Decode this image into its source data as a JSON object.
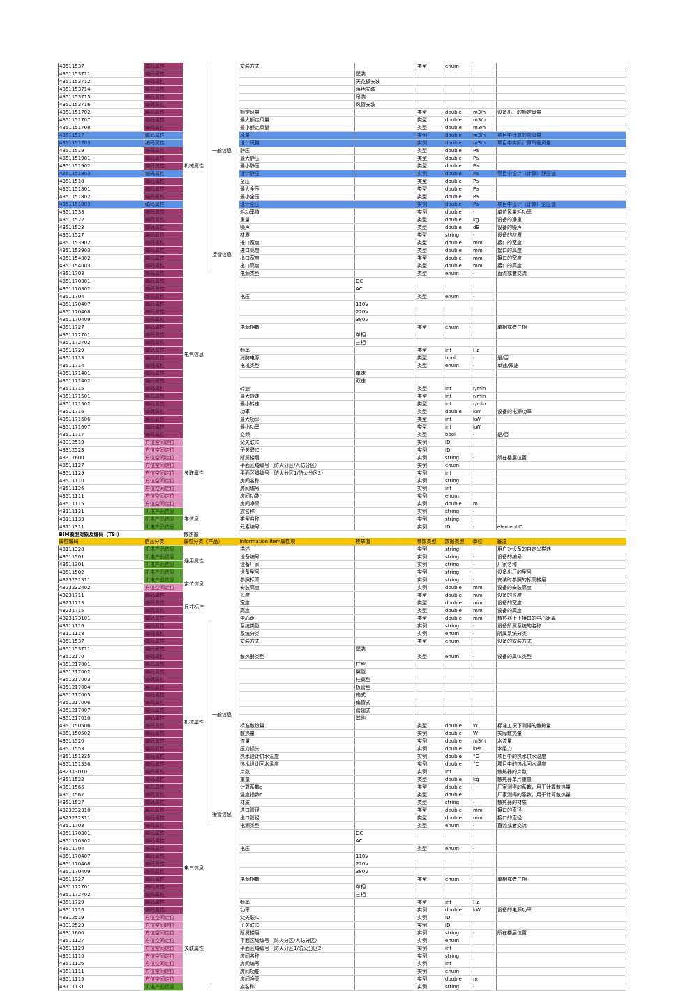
{
  "t1": {
    "rows": [
      [
        "43511537",
        "编码属性",
        "安装方式",
        "",
        "类型",
        "enum",
        "-",
        ""
      ],
      [
        "4351153711",
        "编码属性",
        "",
        "壁装",
        "",
        "",
        "",
        ""
      ],
      [
        "4351153712",
        "编码属性",
        "",
        "天花板安装",
        "",
        "",
        "",
        ""
      ],
      [
        "4351153714",
        "编码属性",
        "",
        "落地安装",
        "",
        "",
        "",
        ""
      ],
      [
        "4351153715",
        "编码属性",
        "",
        "吊装",
        "",
        "",
        "",
        ""
      ],
      [
        "4351153716",
        "编码属性",
        "",
        "风管安装",
        "",
        "",
        "",
        ""
      ],
      [
        "4351151702",
        "编码属性",
        "额定风量",
        "",
        "类型",
        "double",
        "m3/h",
        "设备出厂的额定风量"
      ],
      [
        "4351151707",
        "编码属性",
        "最大额定风量",
        "",
        "类型",
        "double",
        "m3/h",
        ""
      ],
      [
        "4351151708",
        "编码属性",
        "最小额定风量",
        "",
        "类型",
        "double",
        "m3/h",
        ""
      ],
      [
        "43511517",
        "编码属性",
        "风量",
        "",
        "实例",
        "double",
        "m3/h",
        "项目中计算的需风量"
      ],
      [
        "4351151703",
        "编码属性",
        "设计风量",
        "",
        "实例",
        "double",
        "m3/h",
        "项目中实际计算所需风量"
      ],
      [
        "43511519",
        "编码属性",
        "静压",
        "",
        "类型",
        "double",
        "Pa",
        ""
      ],
      [
        "4351151901",
        "编码属性",
        "最大静压",
        "",
        "类型",
        "double",
        "Pa",
        ""
      ],
      [
        "4351151902",
        "编码属性",
        "最小静压",
        "",
        "类型",
        "double",
        "Pa",
        ""
      ],
      [
        "4351151903",
        "编码属性",
        "设计静压",
        "",
        "实例",
        "double",
        "Pa",
        "项目中设计（计算）静压值"
      ],
      [
        "43511518",
        "编码属性",
        "全压",
        "",
        "类型",
        "double",
        "Pa",
        ""
      ],
      [
        "4351151801",
        "编码属性",
        "最大全压",
        "",
        "类型",
        "double",
        "Pa",
        ""
      ],
      [
        "4351151802",
        "编码属性",
        "最小全压",
        "",
        "类型",
        "double",
        "Pa",
        ""
      ],
      [
        "4351151803",
        "编码属性",
        "设计全压",
        "",
        "实例",
        "double",
        "Pa",
        "项目中设计（计算）全压值"
      ],
      [
        "43511538",
        "编码属性",
        "耗功率值",
        "",
        "实例",
        "double",
        "-",
        "单位风量耗功率"
      ],
      [
        "43511522",
        "编码属性",
        "重量",
        "",
        "类型",
        "double",
        "kg",
        "设备的净重"
      ],
      [
        "43511523",
        "编码属性",
        "噪声",
        "",
        "类型",
        "double",
        "dB",
        "设备的噪声"
      ],
      [
        "43511527",
        "编码属性",
        "材质",
        "",
        "类型",
        "string",
        "-",
        "设备的材质"
      ],
      [
        "4351153902",
        "编码属性",
        "进口宽度",
        "",
        "类型",
        "double",
        "mm",
        "接口的宽度"
      ],
      [
        "4351153903",
        "编码属性",
        "进口高度",
        "",
        "类型",
        "double",
        "mm",
        "接口的高度"
      ],
      [
        "4351154002",
        "编码属性",
        "出口宽度",
        "",
        "类型",
        "double",
        "mm",
        "接口的宽度"
      ],
      [
        "4351154003",
        "编码属性",
        "出口高度",
        "",
        "类型",
        "double",
        "mm",
        "接口的高度"
      ],
      [
        "43511703",
        "编码属性",
        "电源类型",
        "",
        "类型",
        "enum",
        "-",
        "直流或者交流"
      ],
      [
        "4351170301",
        "编码属性",
        "",
        "DC",
        "",
        "",
        "",
        ""
      ],
      [
        "4351170302",
        "编码属性",
        "",
        "AC",
        "",
        "",
        "",
        ""
      ],
      [
        "43511704",
        "编码属性",
        "电压",
        "",
        "类型",
        "enum",
        "-",
        ""
      ],
      [
        "4351170407",
        "编码属性",
        "",
        "110V",
        "",
        "",
        "",
        ""
      ],
      [
        "4351170408",
        "编码属性",
        "",
        "220V",
        "",
        "",
        "",
        ""
      ],
      [
        "4351170409",
        "编码属性",
        "",
        "380V",
        "",
        "",
        "",
        ""
      ],
      [
        "43511727",
        "编码属性",
        "电源相数",
        "",
        "类型",
        "enum",
        "-",
        "单相或者三相"
      ],
      [
        "4351172701",
        "编码属性",
        "",
        "单相",
        "",
        "",
        "",
        ""
      ],
      [
        "4351172702",
        "编码属性",
        "",
        "三相",
        "",
        "",
        "",
        ""
      ],
      [
        "43511729",
        "编码属性",
        "频率",
        "",
        "类型",
        "int",
        "Hz",
        ""
      ],
      [
        "43511713",
        "编码属性",
        "消防电源",
        "",
        "类型",
        "bool",
        "-",
        "是/否"
      ],
      [
        "43511714",
        "编码属性",
        "电机类型",
        "",
        "类型",
        "enum",
        "-",
        "单速/双速"
      ],
      [
        "4351171401",
        "编码属性",
        "",
        "单速",
        "",
        "",
        "",
        ""
      ],
      [
        "4351171402",
        "编码属性",
        "",
        "双速",
        "",
        "",
        "",
        ""
      ],
      [
        "43511715",
        "编码属性",
        "转速",
        "",
        "类型",
        "int",
        "r/min",
        ""
      ],
      [
        "4351171501",
        "编码属性",
        "最大转速",
        "",
        "类型",
        "int",
        "r/min",
        ""
      ],
      [
        "4351171502",
        "编码属性",
        "最小转速",
        "",
        "类型",
        "int",
        "r/min",
        ""
      ],
      [
        "43511716",
        "编码属性",
        "功率",
        "",
        "类型",
        "double",
        "kW",
        "设备的电源功率"
      ],
      [
        "4351171606",
        "编码属性",
        "最大功率",
        "",
        "类型",
        "int",
        "kW",
        ""
      ],
      [
        "4351171607",
        "编码属性",
        "最小功率",
        "",
        "类型",
        "int",
        "kW",
        ""
      ],
      [
        "43511717",
        "编码属性",
        "变频",
        "",
        "类型",
        "bool",
        "-",
        "是/否"
      ],
      [
        "43312519",
        "方位空间定位",
        "父关联ID",
        "",
        "实例",
        "ID",
        "",
        ""
      ],
      [
        "43312523",
        "方位空间定位",
        "子关联ID",
        "",
        "实例",
        "ID",
        "",
        ""
      ],
      [
        "43311600",
        "方位空间定位",
        "所属楼层",
        "",
        "实例",
        "string",
        "-",
        "所在楼层位置"
      ],
      [
        "43511127",
        "方位空间定位",
        "平面区域编号（防火分区/人防分区）",
        "",
        "实例",
        "enum",
        "",
        ""
      ],
      [
        "43511129",
        "方位空间定位",
        "平面区域编号（防火分区1/防火分区2）",
        "",
        "实例",
        "int",
        "",
        ""
      ],
      [
        "43511110",
        "方位空间定位",
        "房间名称",
        "",
        "实例",
        "string",
        "",
        ""
      ],
      [
        "43511126",
        "方位空间定位",
        "房间编号",
        "",
        "实例",
        "int",
        "",
        ""
      ],
      [
        "43511111",
        "方位空间定位",
        "房间功能",
        "",
        "实例",
        "enum",
        "",
        ""
      ],
      [
        "43511115",
        "方位空间定位",
        "房间净高",
        "",
        "实例",
        "double",
        "m",
        ""
      ],
      [
        "43111131",
        "机电产品信息",
        "族名称",
        "",
        "实例",
        "string",
        "-",
        ""
      ],
      [
        "43111133",
        "机电产品信息",
        "类型名称",
        "",
        "实例",
        "string",
        "-",
        ""
      ],
      [
        "43111311",
        "机电产品信息",
        "元素编号",
        "",
        "实例",
        "ID",
        "-",
        "elementID"
      ]
    ]
  },
  "section_title": "BIM模型对象及编码（TSI）",
  "section_sub": "散热器",
  "t2": {
    "headers": [
      "属性编码",
      "信息分类",
      "属性分类（产品）",
      "",
      "Information Item属性项",
      "枚举值",
      "参数类型",
      "数据类型",
      "单位",
      "备注"
    ],
    "rows": [
      [
        "43111328",
        "机电产品信息",
        "描述",
        "",
        "实例",
        "string",
        "-",
        "用户对设备的自定义描述"
      ],
      [
        "43511501",
        "机电产品信息",
        "设备编号",
        "",
        "实例",
        "string",
        "-",
        "设备的编号"
      ],
      [
        "43511301",
        "机电产品信息",
        "设备厂家",
        "",
        "实例",
        "string",
        "-",
        "厂家名称"
      ],
      [
        "43511502",
        "机电产品信息",
        "设备型号",
        "",
        "实例",
        "string",
        "-",
        "设备出厂的型号"
      ],
      [
        "4323231311",
        "机电产品信息",
        "参照标高",
        "",
        "实例",
        "string",
        "-",
        "安装时参照的标高楼层"
      ],
      [
        "4323232402",
        "方位空间定位",
        "安装高度",
        "",
        "实例",
        "double",
        "mm",
        "设备的安装高度"
      ],
      [
        "43231711",
        "编码属性",
        "长度",
        "",
        "类型",
        "double",
        "mm",
        "设备的长度"
      ],
      [
        "43231713",
        "编码属性",
        "宽度",
        "",
        "类型",
        "double",
        "mm",
        "设备的宽度"
      ],
      [
        "43231715",
        "编码属性",
        "高度",
        "",
        "类型",
        "double",
        "mm",
        "设备的高度"
      ],
      [
        "4323173101",
        "编码属性",
        "中心距",
        "",
        "类型",
        "double",
        "mm",
        "散热器上下接口的中心距离"
      ],
      [
        "43111116",
        "编码属性",
        "系统类型",
        "",
        "实例",
        "string",
        "-",
        "设备所属系统的名称"
      ],
      [
        "43111118",
        "编码属性",
        "系统分类",
        "",
        "实例",
        "enum",
        "-",
        "所属系统分类"
      ],
      [
        "43511537",
        "编码属性",
        "安装方式",
        "",
        "类型",
        "enum",
        "-",
        "设备的安装方式"
      ],
      [
        "4351153711",
        "编码属性",
        "",
        "壁装",
        "",
        "",
        "",
        ""
      ],
      [
        "43512170",
        "编码属性",
        "散热器类型",
        "",
        "类型",
        "enum",
        "-",
        "设备的具体类型"
      ],
      [
        "4351217001",
        "编码属性",
        "",
        "柱型",
        "",
        "",
        "",
        ""
      ],
      [
        "4351217002",
        "编码属性",
        "",
        "翼型",
        "",
        "",
        "",
        ""
      ],
      [
        "4351217003",
        "编码属性",
        "",
        "柱翼型",
        "",
        "",
        "",
        ""
      ],
      [
        "4351217004",
        "编码属性",
        "",
        "板管型",
        "",
        "",
        "",
        ""
      ],
      [
        "4351217005",
        "编码属性",
        "",
        "扁式",
        "",
        "",
        "",
        ""
      ],
      [
        "4351217006",
        "编码属性",
        "",
        "扁管式",
        "",
        "",
        "",
        ""
      ],
      [
        "4351217007",
        "编码属性",
        "",
        "管翅式",
        "",
        "",
        "",
        ""
      ],
      [
        "4351217010",
        "编码属性",
        "",
        "其他",
        "",
        "",
        "",
        ""
      ],
      [
        "4351150506",
        "编码属性",
        "标准散热量",
        "",
        "类型",
        "double",
        "W",
        "标准工况下测得的散热量"
      ],
      [
        "4351150502",
        "编码属性",
        "散热量",
        "",
        "实例",
        "double",
        "W",
        "实际散热量"
      ],
      [
        "43511520",
        "编码属性",
        "流量",
        "",
        "实例",
        "double",
        "m3/h",
        "水流量"
      ],
      [
        "43511553",
        "编码属性",
        "压力损失",
        "",
        "实例",
        "double",
        "kPa",
        "水阻力"
      ],
      [
        "4351151335",
        "编码属性",
        "热水设计供水温度",
        "",
        "实例",
        "double",
        "°C",
        "项目中的热水供水温度"
      ],
      [
        "4351151336",
        "编码属性",
        "热水设计回水温度",
        "",
        "实例",
        "double",
        "°C",
        "项目中的热水回水温度"
      ],
      [
        "4323130101",
        "编码属性",
        "片数",
        "",
        "实例",
        "int",
        "",
        "散热器的片数"
      ],
      [
        "43511522",
        "编码属性",
        "重量",
        "",
        "类型",
        "double",
        "kg",
        "散热器单片重量"
      ],
      [
        "43511566",
        "编码属性",
        "计算系数a",
        "",
        "类型",
        "double",
        "",
        "厂家测得的系数，用于计算散热量"
      ],
      [
        "43511567",
        "编码属性",
        "温度指数n",
        "",
        "类型",
        "double",
        "",
        "厂家测得的系数，用于计算散热量"
      ],
      [
        "43511527",
        "编码属性",
        "材质",
        "",
        "类型",
        "string",
        "-",
        "散热器的材质"
      ],
      [
        "4323232310",
        "编码属性",
        "进口管径",
        "",
        "类型",
        "double",
        "mm",
        "接口的直径"
      ],
      [
        "4323232311",
        "编码属性",
        "出口管径",
        "",
        "类型",
        "double",
        "mm",
        "接口的直径"
      ],
      [
        "43511703",
        "编码属性",
        "电源类型",
        "",
        "类型",
        "enum",
        "-",
        "直流或者交流"
      ],
      [
        "4351170301",
        "编码属性",
        "",
        "DC",
        "",
        "",
        "",
        ""
      ],
      [
        "4351170302",
        "编码属性",
        "",
        "AC",
        "",
        "",
        "",
        ""
      ],
      [
        "43511704",
        "编码属性",
        "电压",
        "",
        "类型",
        "enum",
        "-",
        ""
      ],
      [
        "4351170407",
        "编码属性",
        "",
        "110V",
        "",
        "",
        "",
        ""
      ],
      [
        "4351170408",
        "编码属性",
        "",
        "220V",
        "",
        "",
        "",
        ""
      ],
      [
        "4351170409",
        "编码属性",
        "",
        "380V",
        "",
        "",
        "",
        ""
      ],
      [
        "43511727",
        "编码属性",
        "电源相数",
        "",
        "类型",
        "enum",
        "-",
        "单相或者三相"
      ],
      [
        "4351172701",
        "编码属性",
        "",
        "单相",
        "",
        "",
        "",
        ""
      ],
      [
        "4351172702",
        "编码属性",
        "",
        "三相",
        "",
        "",
        "",
        ""
      ],
      [
        "43511729",
        "编码属性",
        "频率",
        "",
        "类型",
        "int",
        "Hz",
        ""
      ],
      [
        "43511716",
        "编码属性",
        "功率",
        "",
        "实例",
        "double",
        "kW",
        "设备的电源功率"
      ],
      [
        "43312519",
        "方位空间定位",
        "父关联ID",
        "",
        "实例",
        "ID",
        "",
        ""
      ],
      [
        "43312523",
        "方位空间定位",
        "子关联ID",
        "",
        "实例",
        "ID",
        "",
        ""
      ],
      [
        "43311600",
        "方位空间定位",
        "所属楼层",
        "",
        "实例",
        "string",
        "-",
        "所在楼层位置"
      ],
      [
        "43511127",
        "方位空间定位",
        "平面区域编号（防火分区/人防分区）",
        "",
        "实例",
        "enum",
        "",
        ""
      ],
      [
        "43511129",
        "方位空间定位",
        "平面区域编号（防火分区1/防火分区2）",
        "",
        "实例",
        "int",
        "",
        ""
      ],
      [
        "43511110",
        "方位空间定位",
        "房间名称",
        "",
        "实例",
        "string",
        "",
        ""
      ],
      [
        "43511126",
        "方位空间定位",
        "房间编号",
        "",
        "实例",
        "int",
        "",
        ""
      ],
      [
        "43511111",
        "方位空间定位",
        "房间功能",
        "",
        "实例",
        "enum",
        "",
        ""
      ],
      [
        "43511115",
        "方位空间定位",
        "房间净高",
        "",
        "实例",
        "double",
        "m",
        ""
      ],
      [
        "43111131",
        "机电产品信息",
        "族名称",
        "",
        "实例",
        "string",
        "-",
        ""
      ]
    ]
  },
  "groups1": [
    {
      "label": "机械属性",
      "col": 2,
      "start": 0,
      "span": 27
    },
    {
      "label": "一般信息",
      "col": 3,
      "start": 0,
      "span": 23
    },
    {
      "label": "接管信息",
      "col": 3,
      "start": 23,
      "span": 4
    },
    {
      "label": "电气信息",
      "col": 2,
      "start": 27,
      "span": 22
    },
    {
      "label": "关联属性",
      "col": 2,
      "start": 49,
      "span": 9
    },
    {
      "label": "类信息",
      "col": 2,
      "start": 58,
      "span": 3
    }
  ],
  "groups2": [
    {
      "label": "通用属性",
      "col": 2,
      "start": 0,
      "span": 4
    },
    {
      "label": "定位信息",
      "col": 2,
      "start": 4,
      "span": 2
    },
    {
      "label": "尺寸标注",
      "col": 2,
      "start": 6,
      "span": 4
    },
    {
      "label": "机械属性",
      "col": 2,
      "start": 10,
      "span": 26
    },
    {
      "label": "一般信息",
      "col": 3,
      "start": 10,
      "span": 24
    },
    {
      "label": "接管信息",
      "col": 3,
      "start": 34,
      "span": 2
    },
    {
      "label": "电气信息",
      "col": 2,
      "start": 36,
      "span": 12
    },
    {
      "label": "关联属性",
      "col": 2,
      "start": 48,
      "span": 9
    }
  ],
  "highlight1": [
    9,
    10,
    14,
    18
  ],
  "colors": {
    "编码属性": "#9e3a6e",
    "方位空间定位": "#e48fbd",
    "机电产品信息": "#5aa02c",
    "header": "#f7c400",
    "highlight": "#5a92e8"
  }
}
